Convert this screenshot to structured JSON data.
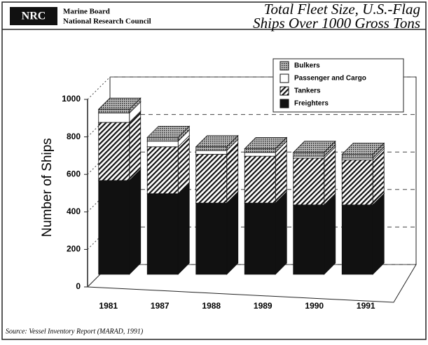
{
  "header": {
    "org_line1": "Marine Board",
    "org_line2": "National Research Council",
    "logo": "NRC"
  },
  "chart_data": {
    "type": "bar",
    "stacked": true,
    "title_line1": "Total Fleet Size, U.S.-Flag",
    "title_line2": "Ships Over 1000 Gross Tons",
    "y_label": "Number of Ships",
    "categories": [
      "1981",
      "1987",
      "1988",
      "1989",
      "1990",
      "1991"
    ],
    "series": [
      {
        "name": "Freighters",
        "color": "#111111",
        "pattern": "solid",
        "values": [
          500,
          430,
          380,
          380,
          370,
          370
        ]
      },
      {
        "name": "Tankers",
        "color": "#111111",
        "pattern": "hatch",
        "values": [
          310,
          250,
          260,
          250,
          250,
          240
        ]
      },
      {
        "name": "Passenger and Cargo",
        "color": "#ffffff",
        "pattern": "solid",
        "values": [
          50,
          30,
          20,
          20,
          10,
          10
        ]
      },
      {
        "name": "Bulkers",
        "color": "#777777",
        "pattern": "dots",
        "values": [
          20,
          20,
          20,
          20,
          20,
          20
        ]
      }
    ],
    "ylim": [
      0,
      1000
    ],
    "yticks": [
      0,
      200,
      400,
      600,
      800,
      1000
    ],
    "grid": true,
    "legend": "top-right",
    "source": "Source: Vessel Inventory Report (MARAD, 1991)"
  }
}
